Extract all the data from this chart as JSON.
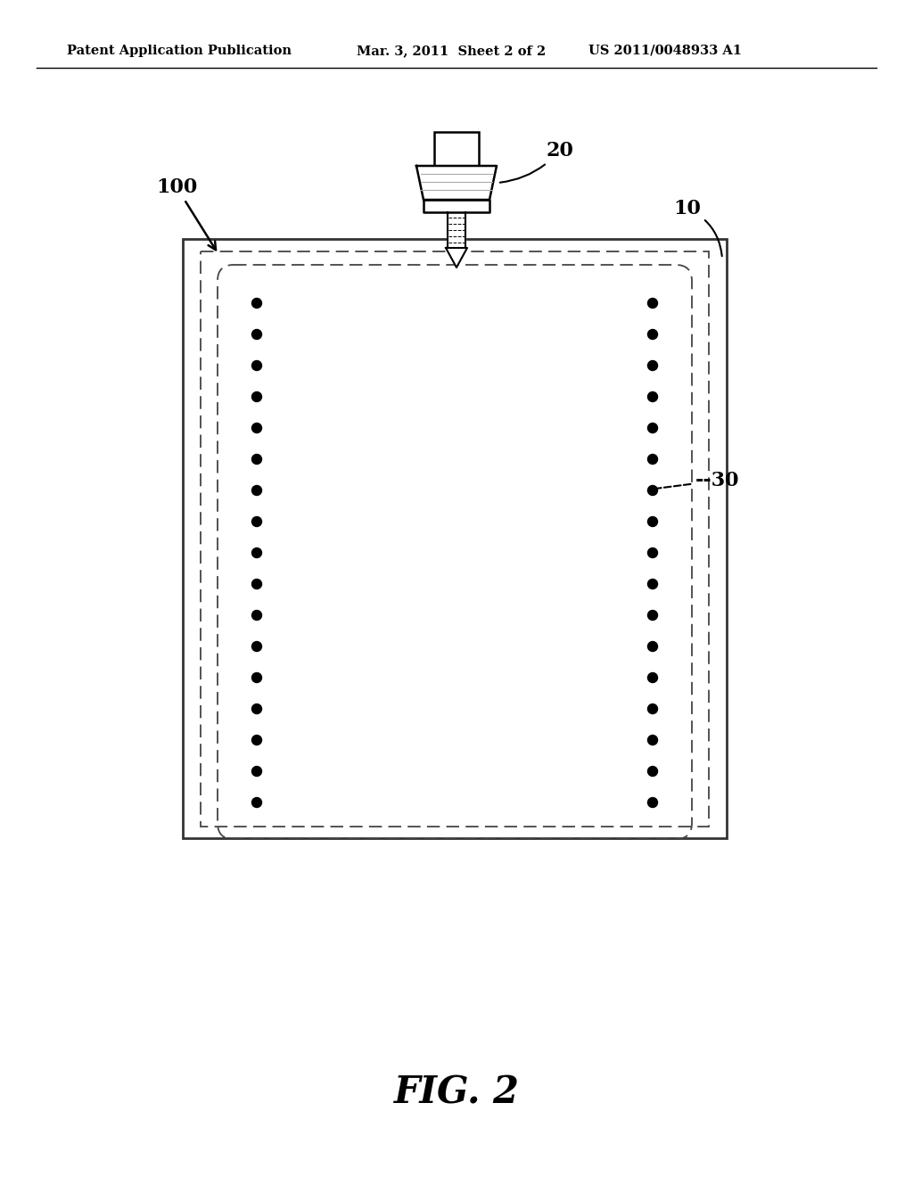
{
  "bg_color": "#ffffff",
  "header_left": "Patent Application Publication",
  "header_mid": "Mar. 3, 2011  Sheet 2 of 2",
  "header_right": "US 2011/0048933 A1",
  "fig_label": "FIG. 2",
  "label_100": "100",
  "label_20": "20",
  "label_10": "10",
  "label_30": "30",
  "num_dots_side": 17
}
